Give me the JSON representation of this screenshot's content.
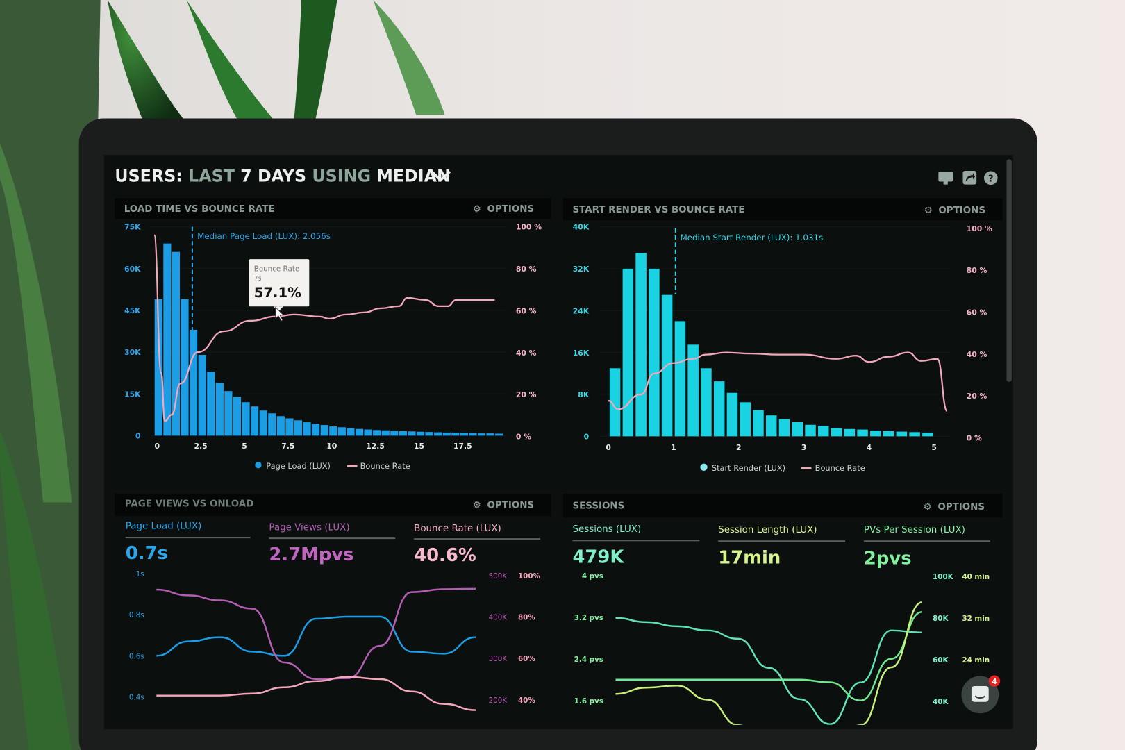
{
  "header": {
    "title_parts": [
      "USERS:",
      "LAST",
      "7 DAYS",
      "USING",
      "MEDIAN"
    ],
    "icons": [
      "monitor-icon",
      "share-icon",
      "help-icon"
    ]
  },
  "colors": {
    "page_load": "#1c9ee6",
    "start_render": "#19d2e2",
    "bounce": "#f4a6bb",
    "page_views": "#b55fb4",
    "sessions": "#5fe3b4",
    "session_length": "#c9f07c",
    "pvs_per_session": "#6fe890"
  },
  "panels": {
    "load_time": {
      "title": "LOAD TIME VS BOUNCE RATE",
      "options": "OPTIONS",
      "median_label": "Median Page Load (LUX): 2.056s",
      "tooltip": {
        "title": "Bounce Rate",
        "x": "7s",
        "value": "57.1%"
      },
      "legend": [
        "Page Load (LUX)",
        "Bounce Rate"
      ]
    },
    "start_render": {
      "title": "START RENDER VS BOUNCE RATE",
      "options": "OPTIONS",
      "median_label": "Median Start Render (LUX): 1.031s",
      "legend": [
        "Start Render (LUX)",
        "Bounce Rate"
      ]
    },
    "page_views": {
      "title": "PAGE VIEWS VS ONLOAD",
      "options": "OPTIONS",
      "metrics": [
        {
          "label": "Page Load (LUX)",
          "value": "0.7s"
        },
        {
          "label": "Page Views (LUX)",
          "value": "2.7Mpvs"
        },
        {
          "label": "Bounce Rate (LUX)",
          "value": "40.6%"
        }
      ]
    },
    "sessions": {
      "title": "SESSIONS",
      "options": "OPTIONS",
      "metrics": [
        {
          "label": "Sessions (LUX)",
          "value": "479K"
        },
        {
          "label": "Session Length (LUX)",
          "value": "17min"
        },
        {
          "label": "PVs Per Session (LUX)",
          "value": "2pvs"
        }
      ]
    }
  },
  "chat": {
    "badge": "4"
  },
  "chart_data": [
    {
      "type": "bar",
      "title": "LOAD TIME VS BOUNCE RATE",
      "x_ticks": [
        "0",
        "2.5",
        "5",
        "7.5",
        "10",
        "12.5",
        "15",
        "17.5"
      ],
      "y_ticks_left": [
        "0",
        "15K",
        "30K",
        "45K",
        "60K",
        "75K"
      ],
      "y_ticks_right": [
        "0 %",
        "20 %",
        "40 %",
        "60 %",
        "80 %",
        "100 %"
      ],
      "ylim_left": [
        0,
        75000
      ],
      "ylim_right": [
        0,
        100
      ],
      "median": 2.056,
      "bar_width_s": 0.5,
      "series": [
        {
          "name": "Page Load (LUX)",
          "type": "bar",
          "x_start": [
            0,
            0.5,
            1,
            1.5,
            2,
            2.5,
            3,
            3.5,
            4,
            4.5,
            5,
            5.5,
            6,
            6.5,
            7,
            7.5,
            8,
            8.5,
            9,
            9.5,
            10,
            10.5,
            11,
            11.5,
            12,
            12.5,
            13,
            13.5,
            14,
            14.5,
            15,
            15.5,
            16,
            16.5,
            17,
            17.5,
            18,
            18.5,
            19,
            19.5
          ],
          "values": [
            49000,
            69000,
            66000,
            49000,
            38000,
            29000,
            23000,
            19000,
            16000,
            14000,
            12000,
            10500,
            9000,
            8000,
            7000,
            6200,
            5500,
            4800,
            4200,
            3800,
            3300,
            3000,
            2700,
            2400,
            2200,
            2000,
            1900,
            1700,
            1600,
            1500,
            1400,
            1300,
            1200,
            1100,
            1000,
            1000,
            900,
            800,
            800,
            700
          ]
        },
        {
          "name": "Bounce Rate",
          "type": "line",
          "x": [
            0,
            0.4,
            0.6,
            1,
            1.5,
            2.5,
            4,
            5.5,
            7,
            8,
            9.5,
            10,
            11,
            12,
            13,
            14,
            14.5,
            15.5,
            16.3,
            16.8,
            17.3,
            19.5
          ],
          "values": [
            96,
            30,
            7,
            10,
            25,
            40,
            50,
            55,
            57.1,
            58,
            57,
            56,
            58,
            59,
            61,
            62,
            66,
            65,
            62,
            62,
            65,
            65
          ]
        }
      ]
    },
    {
      "type": "bar",
      "title": "START RENDER VS BOUNCE RATE",
      "x_ticks": [
        "0",
        "1",
        "2",
        "3",
        "4",
        "5"
      ],
      "y_ticks_left": [
        "0",
        "8K",
        "16K",
        "24K",
        "32K",
        "40K"
      ],
      "y_ticks_right": [
        "0 %",
        "20 %",
        "40 %",
        "60 %",
        "80 %",
        "100 %"
      ],
      "ylim_left": [
        0,
        40000
      ],
      "ylim_right": [
        0,
        100
      ],
      "median": 1.031,
      "series": [
        {
          "name": "Start Render (LUX)",
          "type": "bar",
          "x": [
            0.2,
            0.4,
            0.6,
            0.8,
            1.0,
            1.2,
            1.4,
            1.6,
            1.8,
            2.0,
            2.2,
            2.4,
            2.6,
            2.8,
            3.0,
            3.2,
            3.4,
            3.6,
            3.8,
            4.0,
            4.2,
            4.4,
            4.6,
            4.8,
            5.0
          ],
          "values": [
            13000,
            32000,
            35000,
            32000,
            27000,
            22000,
            17500,
            13000,
            10500,
            8300,
            6500,
            5000,
            4000,
            3300,
            2700,
            2200,
            2000,
            1600,
            1400,
            1300,
            1100,
            1000,
            900,
            800,
            700
          ]
        },
        {
          "name": "Bounce Rate",
          "type": "line",
          "x": [
            0,
            0.15,
            0.5,
            0.7,
            1,
            1.3,
            1.5,
            1.8,
            2.2,
            2.6,
            3,
            3.5,
            3.8,
            4,
            4.3,
            4.6,
            4.8,
            5.05,
            5.2
          ],
          "values": [
            17,
            13,
            20,
            30,
            35,
            37,
            39,
            40,
            39.5,
            39,
            39,
            37,
            38.5,
            35.5,
            38,
            40,
            36,
            37,
            12
          ]
        }
      ]
    },
    {
      "type": "line",
      "title": "PAGE VIEWS VS ONLOAD",
      "y_ticks_left": [
        "0.4s",
        "0.6s",
        "0.8s",
        "1s"
      ],
      "y_ticks_right_1": [
        "200K",
        "300K",
        "400K",
        "500K"
      ],
      "y_ticks_right_2": [
        "40%",
        "60%",
        "80%",
        "100%"
      ],
      "series": [
        {
          "name": "Page Load (LUX)",
          "axis": "seconds",
          "values": [
            0.6,
            0.67,
            0.69,
            0.62,
            0.6,
            0.78,
            0.79,
            0.79,
            0.62,
            0.61,
            0.69
          ]
        },
        {
          "name": "Page Views (LUX)",
          "axis": "pageviews",
          "values": [
            466000,
            452000,
            440000,
            420000,
            290000,
            250000,
            252000,
            330000,
            460000,
            467000,
            468000
          ]
        },
        {
          "name": "Bounce Rate (LUX)",
          "axis": "percent",
          "values": [
            42,
            42,
            42,
            43,
            46,
            49,
            51,
            50,
            44,
            38,
            35
          ]
        }
      ]
    },
    {
      "type": "line",
      "title": "SESSIONS",
      "y_ticks_left": [
        "1.6 pvs",
        "2.4 pvs",
        "3.2 pvs",
        "4 pvs"
      ],
      "y_ticks_right_1": [
        "40K",
        "60K",
        "80K",
        "100K"
      ],
      "y_ticks_right_2": [
        "24 min",
        "32 min",
        "40 min"
      ],
      "series": [
        {
          "name": "Sessions (LUX)",
          "axis": "sessions",
          "values": [
            80000,
            78000,
            76000,
            74000,
            70000,
            56000,
            41000,
            29000,
            49000,
            74000,
            73000
          ]
        },
        {
          "name": "PVs Per Session (LUX)",
          "axis": "pvs",
          "values": [
            2.0,
            2.0,
            2.0,
            2.0,
            2.0,
            2.0,
            2.0,
            1.95,
            1.6,
            2.4,
            3.3
          ]
        },
        {
          "name": "Session Length (LUX)",
          "axis": "minutes",
          "values": [
            17.4,
            18.6,
            19,
            16.3,
            11.4,
            8,
            6,
            7,
            11.4,
            22.5,
            35
          ]
        }
      ]
    }
  ]
}
